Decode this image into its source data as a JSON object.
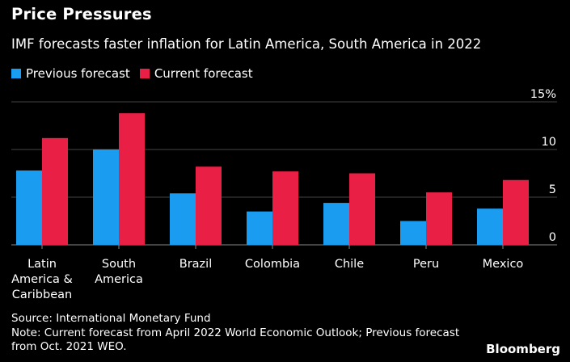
{
  "header": {
    "title": "Price Pressures",
    "subtitle": "IMF forecasts faster inflation for Latin America, South America in 2022"
  },
  "footer": {
    "source": "Source: International Monetary Fund",
    "note_line1": "Note: Current forecast from April 2022 World Economic Outlook; Previous forecast",
    "note_line2": "from Oct. 2021 WEO.",
    "brand": "Bloomberg"
  },
  "colors": {
    "background": "#000000",
    "previous": "#1a9cf0",
    "current": "#ea1f45",
    "grid": "#444444",
    "text": "#ffffff"
  },
  "chart_data": {
    "type": "bar",
    "title": "Price Pressures",
    "subtitle": "IMF forecasts faster inflation for Latin America, South America in 2022",
    "categories": [
      [
        "Latin",
        "America &",
        "Caribbean"
      ],
      [
        "South",
        "America"
      ],
      [
        "Brazil"
      ],
      [
        "Colombia"
      ],
      [
        "Chile"
      ],
      [
        "Peru"
      ],
      [
        "Mexico"
      ]
    ],
    "series": [
      {
        "name": "Previous forecast",
        "color": "#1a9cf0",
        "values": [
          7.8,
          10.0,
          5.4,
          3.5,
          4.4,
          2.5,
          3.8
        ]
      },
      {
        "name": "Current forecast",
        "color": "#ea1f45",
        "values": [
          11.2,
          13.8,
          8.2,
          7.7,
          7.5,
          5.5,
          6.8
        ]
      }
    ],
    "ylim": [
      0,
      15
    ],
    "yticks": [
      0,
      5,
      10,
      15
    ],
    "ytick_labels": [
      "0",
      "5",
      "10",
      "15%"
    ],
    "grid": true,
    "legend_position": "top-left"
  }
}
